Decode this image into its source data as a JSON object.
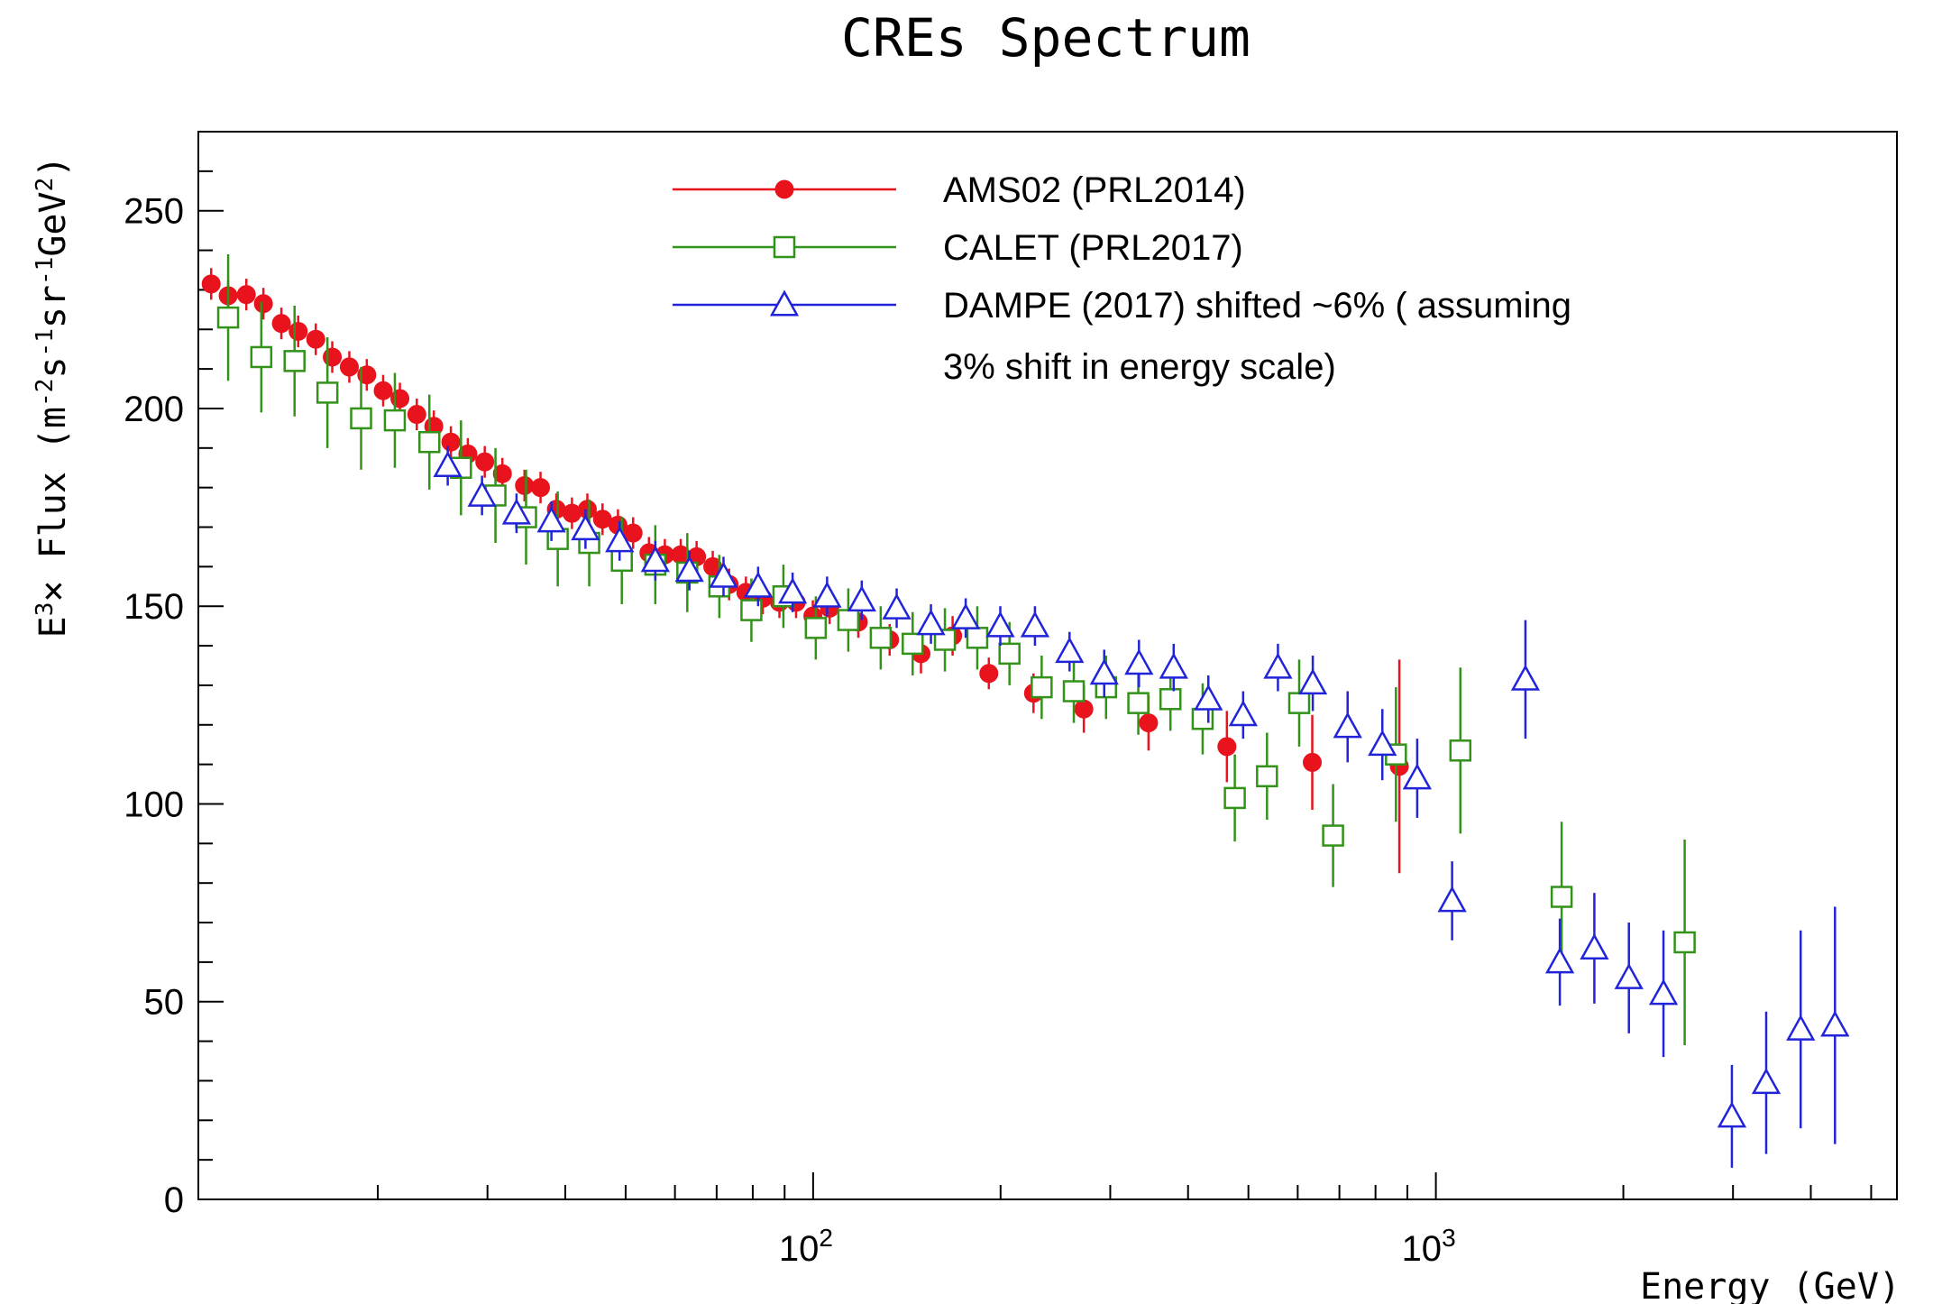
{
  "chart_data": {
    "type": "scatter",
    "title": "CREs Spectrum",
    "xlabel": "Energy (GeV)",
    "ylabel": "E3× Flux (m-2s-1sr-1GeV2)",
    "ylabel_parts": [
      "E",
      "3",
      "× Flux (m",
      "-2",
      "s",
      "-1",
      "sr",
      "-1",
      "GeV",
      "2",
      ")"
    ],
    "xscale": "log",
    "xlim": [
      10.3,
      5500
    ],
    "ylim": [
      0,
      270
    ],
    "yticks": [
      0,
      50,
      100,
      150,
      200,
      250
    ],
    "ytick_labels": [
      "0",
      "50",
      "100",
      "150",
      "200",
      "250"
    ],
    "xtick_labels": [
      {
        "value": 100,
        "base": "10",
        "exp": "2"
      },
      {
        "value": 1000,
        "base": "10",
        "exp": "3"
      }
    ],
    "grid": false,
    "legend_position": "top",
    "legend_lines": [
      "AMS02 (PRL2014)",
      "CALET (PRL2017)",
      "DAMPE (2017) shifted ~6% ( assuming",
      "3% shift in energy scale)"
    ],
    "series": [
      {
        "name": "AMS02 (PRL2014)",
        "color": "#e8131c",
        "marker": "circle-filled",
        "points": [
          {
            "x": 10.8,
            "y": 231.5,
            "err": 4
          },
          {
            "x": 11.5,
            "y": 228.5,
            "err": 4
          },
          {
            "x": 12.3,
            "y": 228.8,
            "err": 4
          },
          {
            "x": 13.1,
            "y": 226.5,
            "err": 4
          },
          {
            "x": 14.0,
            "y": 221.5,
            "err": 4
          },
          {
            "x": 14.9,
            "y": 219.5,
            "err": 4
          },
          {
            "x": 15.9,
            "y": 217.5,
            "err": 4
          },
          {
            "x": 16.9,
            "y": 213,
            "err": 4
          },
          {
            "x": 18.0,
            "y": 210.5,
            "err": 4
          },
          {
            "x": 19.2,
            "y": 208.5,
            "err": 4
          },
          {
            "x": 20.4,
            "y": 204.5,
            "err": 4
          },
          {
            "x": 21.7,
            "y": 202.5,
            "err": 4
          },
          {
            "x": 23.1,
            "y": 198.5,
            "err": 4
          },
          {
            "x": 24.6,
            "y": 195.5,
            "err": 4
          },
          {
            "x": 26.2,
            "y": 191.5,
            "err": 4
          },
          {
            "x": 27.9,
            "y": 188.5,
            "err": 4
          },
          {
            "x": 29.7,
            "y": 186.5,
            "err": 4
          },
          {
            "x": 31.7,
            "y": 183.5,
            "err": 4
          },
          {
            "x": 34.4,
            "y": 180.5,
            "err": 4
          },
          {
            "x": 36.5,
            "y": 180,
            "err": 4
          },
          {
            "x": 38.7,
            "y": 174.5,
            "err": 4
          },
          {
            "x": 41.0,
            "y": 173.5,
            "err": 4
          },
          {
            "x": 43.4,
            "y": 174.5,
            "err": 4
          },
          {
            "x": 45.9,
            "y": 172,
            "err": 4
          },
          {
            "x": 48.6,
            "y": 170.5,
            "err": 4
          },
          {
            "x": 51.4,
            "y": 168.5,
            "err": 4
          },
          {
            "x": 54.5,
            "y": 163.5,
            "err": 4
          },
          {
            "x": 57.8,
            "y": 163,
            "err": 4
          },
          {
            "x": 61.3,
            "y": 163,
            "err": 4
          },
          {
            "x": 65.0,
            "y": 162.5,
            "err": 4
          },
          {
            "x": 69.0,
            "y": 160,
            "err": 4
          },
          {
            "x": 73.3,
            "y": 155.5,
            "err": 4
          },
          {
            "x": 78.0,
            "y": 153.5,
            "err": 4
          },
          {
            "x": 83.0,
            "y": 152,
            "err": 4
          },
          {
            "x": 88.3,
            "y": 151,
            "err": 4
          },
          {
            "x": 93.9,
            "y": 151,
            "err": 4
          },
          {
            "x": 99.9,
            "y": 147.5,
            "err": 4
          },
          {
            "x": 106.3,
            "y": 149.5,
            "err": 4
          },
          {
            "x": 118.2,
            "y": 146,
            "err": 4
          },
          {
            "x": 132.7,
            "y": 141.5,
            "err": 4
          },
          {
            "x": 149.0,
            "y": 138,
            "err": 5
          },
          {
            "x": 167.5,
            "y": 142.5,
            "err": 5
          },
          {
            "x": 191.5,
            "y": 133,
            "err": 4
          },
          {
            "x": 225.9,
            "y": 128,
            "err": 5
          },
          {
            "x": 272.1,
            "y": 124,
            "err": 6
          },
          {
            "x": 345.6,
            "y": 120.5,
            "err": 7
          },
          {
            "x": 461.8,
            "y": 114.5,
            "err": 9
          },
          {
            "x": 633.2,
            "y": 110.5,
            "err": 12
          },
          {
            "x": 873.6,
            "y": 109.5,
            "err": 27
          }
        ]
      },
      {
        "name": "CALET (PRL2017)",
        "color": "#33921a",
        "marker": "square-open",
        "points": [
          {
            "x": 11.5,
            "y": 223,
            "err": 16
          },
          {
            "x": 13.0,
            "y": 213,
            "err": 14
          },
          {
            "x": 14.7,
            "y": 212,
            "err": 14
          },
          {
            "x": 16.6,
            "y": 204,
            "err": 14
          },
          {
            "x": 18.8,
            "y": 197.5,
            "err": 13
          },
          {
            "x": 21.3,
            "y": 197,
            "err": 12
          },
          {
            "x": 24.2,
            "y": 191.5,
            "err": 12
          },
          {
            "x": 27.2,
            "y": 185,
            "err": 12
          },
          {
            "x": 30.9,
            "y": 178,
            "err": 12
          },
          {
            "x": 34.6,
            "y": 172.5,
            "err": 12
          },
          {
            "x": 38.9,
            "y": 167,
            "err": 12
          },
          {
            "x": 43.7,
            "y": 166,
            "err": 11
          },
          {
            "x": 49.3,
            "y": 161.5,
            "err": 11
          },
          {
            "x": 55.8,
            "y": 160.5,
            "err": 10
          },
          {
            "x": 62.8,
            "y": 158.5,
            "err": 10
          },
          {
            "x": 70.7,
            "y": 155,
            "err": 8
          },
          {
            "x": 79.6,
            "y": 149,
            "err": 8
          },
          {
            "x": 89.6,
            "y": 152.5,
            "err": 8
          },
          {
            "x": 101.0,
            "y": 144.5,
            "err": 8
          },
          {
            "x": 113.9,
            "y": 146.5,
            "err": 8
          },
          {
            "x": 128.4,
            "y": 142,
            "err": 8
          },
          {
            "x": 144.5,
            "y": 140.5,
            "err": 8
          },
          {
            "x": 162.8,
            "y": 141.5,
            "err": 8
          },
          {
            "x": 183.5,
            "y": 142,
            "err": 8
          },
          {
            "x": 206.7,
            "y": 138,
            "err": 8
          },
          {
            "x": 232.8,
            "y": 129.5,
            "err": 8
          },
          {
            "x": 262.2,
            "y": 128.5,
            "err": 8
          },
          {
            "x": 295.4,
            "y": 129.5,
            "err": 8
          },
          {
            "x": 332.8,
            "y": 125.5,
            "err": 8
          },
          {
            "x": 374.8,
            "y": 126.5,
            "err": 8
          },
          {
            "x": 422.2,
            "y": 121.5,
            "err": 9
          },
          {
            "x": 475.5,
            "y": 101.5,
            "err": 11
          },
          {
            "x": 535.6,
            "y": 107,
            "err": 11
          },
          {
            "x": 603.3,
            "y": 125.5,
            "err": 11
          },
          {
            "x": 683.8,
            "y": 92,
            "err": 13
          },
          {
            "x": 862.7,
            "y": 112.5,
            "err": 17
          },
          {
            "x": 1094.9,
            "y": 113.5,
            "err": 21
          },
          {
            "x": 1592.1,
            "y": 76.5,
            "err": 19
          },
          {
            "x": 2509.2,
            "y": 65,
            "err": 26
          }
        ]
      },
      {
        "name": "DAMPE (2017) shifted ~6% ( assuming 3% shift in energy scale)",
        "color": "#2124d8",
        "marker": "triangle-open",
        "points": [
          {
            "x": 25.9,
            "y": 185.5,
            "err": 5
          },
          {
            "x": 29.4,
            "y": 178,
            "err": 5
          },
          {
            "x": 33.4,
            "y": 173.5,
            "err": 5
          },
          {
            "x": 38.0,
            "y": 171.5,
            "err": 5
          },
          {
            "x": 43.1,
            "y": 169.5,
            "err": 5
          },
          {
            "x": 48.9,
            "y": 166.5,
            "err": 5
          },
          {
            "x": 55.8,
            "y": 161.5,
            "err": 5
          },
          {
            "x": 63.3,
            "y": 159,
            "err": 5
          },
          {
            "x": 71.8,
            "y": 157.5,
            "err": 5
          },
          {
            "x": 81.6,
            "y": 155,
            "err": 5
          },
          {
            "x": 92.7,
            "y": 153.5,
            "err": 5
          },
          {
            "x": 105.3,
            "y": 152.5,
            "err": 5
          },
          {
            "x": 119.7,
            "y": 151.5,
            "err": 5
          },
          {
            "x": 136.2,
            "y": 149.5,
            "err": 5
          },
          {
            "x": 154.6,
            "y": 145.5,
            "err": 5
          },
          {
            "x": 175.8,
            "y": 147,
            "err": 5
          },
          {
            "x": 199.8,
            "y": 145,
            "err": 5
          },
          {
            "x": 227.1,
            "y": 145,
            "err": 5
          },
          {
            "x": 258.1,
            "y": 138.5,
            "err": 5
          },
          {
            "x": 293.4,
            "y": 133,
            "err": 6
          },
          {
            "x": 333.6,
            "y": 135.5,
            "err": 6
          },
          {
            "x": 379.3,
            "y": 134.5,
            "err": 6
          },
          {
            "x": 431.2,
            "y": 126.5,
            "err": 6
          },
          {
            "x": 490.4,
            "y": 122.5,
            "err": 6
          },
          {
            "x": 557.7,
            "y": 134.5,
            "err": 6
          },
          {
            "x": 634.4,
            "y": 130.5,
            "err": 7
          },
          {
            "x": 721.6,
            "y": 119.5,
            "err": 9
          },
          {
            "x": 820.5,
            "y": 115,
            "err": 9
          },
          {
            "x": 933.3,
            "y": 106.5,
            "err": 10
          },
          {
            "x": 1061.9,
            "y": 75.5,
            "err": 10
          },
          {
            "x": 1392.6,
            "y": 131.5,
            "err": 15
          },
          {
            "x": 1581.5,
            "y": 60,
            "err": 11
          },
          {
            "x": 1796.8,
            "y": 63.5,
            "err": 14
          },
          {
            "x": 2041.6,
            "y": 56,
            "err": 14
          },
          {
            "x": 2319.9,
            "y": 52,
            "err": 16
          },
          {
            "x": 2987.8,
            "y": 21,
            "err": 13
          },
          {
            "x": 3391.8,
            "y": 29.5,
            "err": 18
          },
          {
            "x": 3852.9,
            "y": 43,
            "err": 25
          },
          {
            "x": 4374.0,
            "y": 44,
            "err": 30
          }
        ]
      }
    ]
  }
}
